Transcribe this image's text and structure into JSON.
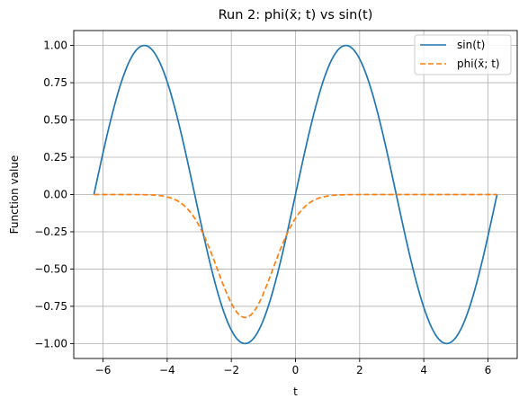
{
  "chart_data": {
    "type": "line",
    "title": "Run 2: phi(x̄; t) vs sin(t)",
    "xlabel": "t",
    "ylabel": "Function value",
    "xlim": [
      -6.912,
      6.912
    ],
    "ylim": [
      -1.1,
      1.1
    ],
    "xticks": [
      -6,
      -4,
      -2,
      0,
      2,
      4,
      6
    ],
    "xtick_labels": [
      "−6",
      "−4",
      "−2",
      "0",
      "2",
      "4",
      "6"
    ],
    "yticks": [
      -1.0,
      -0.75,
      -0.5,
      -0.25,
      0.0,
      0.25,
      0.5,
      0.75,
      1.0
    ],
    "ytick_labels": [
      "−1.00",
      "−0.75",
      "−0.50",
      "−0.25",
      "0.00",
      "0.25",
      "0.50",
      "0.75",
      "1.00"
    ],
    "grid": true,
    "legend_position": "top-right",
    "x_range": [
      -6.2832,
      6.2832
    ],
    "series": [
      {
        "name": "sin(t)",
        "function": "sin(t)",
        "color": "#1f77b4",
        "linestyle": "solid"
      },
      {
        "name": "phi(x̄; t)",
        "function": "-0.825 * exp(-((t + 1.571)^2) / 1.5)",
        "peak": {
          "t": -1.571,
          "value": -0.825
        },
        "color": "#ff7f0e",
        "linestyle": "dashed"
      }
    ]
  }
}
